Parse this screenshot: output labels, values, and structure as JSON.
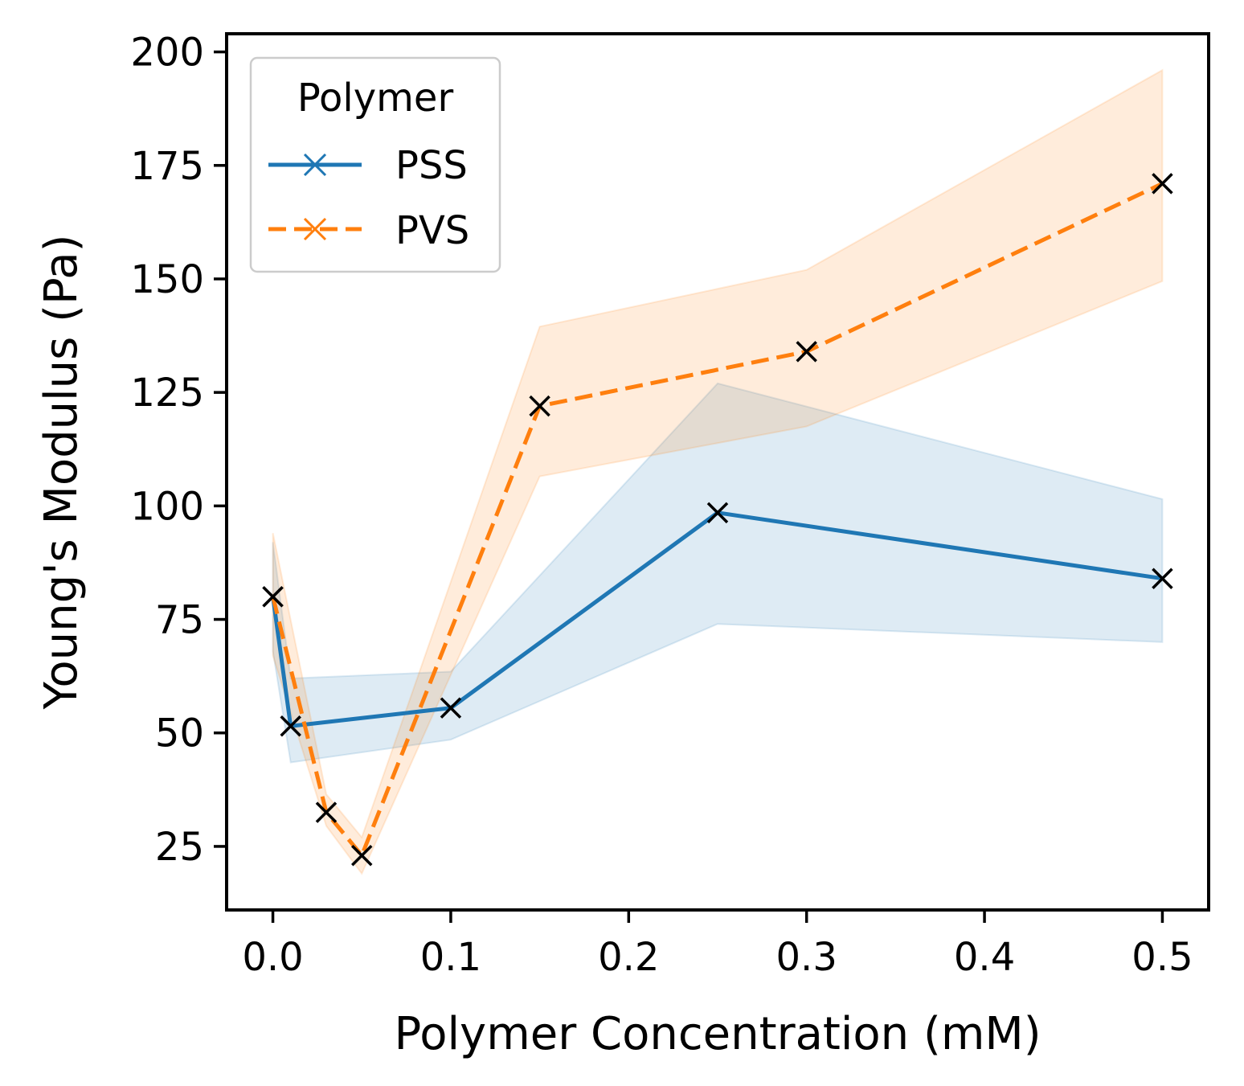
{
  "chart_data": {
    "type": "line",
    "title": "",
    "xlabel": "Polymer Concentration (mM)",
    "ylabel": "Young's Modulus (Pa)",
    "xlim": [
      -0.026,
      0.526
    ],
    "ylim": [
      11,
      204
    ],
    "xticks": [
      0.0,
      0.1,
      0.2,
      0.3,
      0.4,
      0.5
    ],
    "xtick_labels": [
      "0.0",
      "0.1",
      "0.2",
      "0.3",
      "0.4",
      "0.5"
    ],
    "yticks": [
      25,
      50,
      75,
      100,
      125,
      150,
      175,
      200
    ],
    "ytick_labels": [
      "25",
      "50",
      "75",
      "100",
      "125",
      "150",
      "175",
      "200"
    ],
    "grid": false,
    "legend": {
      "title": "Polymer",
      "location": "top-left"
    },
    "marker": "x",
    "marker_color": "#000000",
    "series": [
      {
        "name": "PSS",
        "color": "#1f77b4",
        "linestyle": "solid",
        "x": [
          0.0,
          0.01,
          0.1,
          0.25,
          0.5
        ],
        "y": [
          80,
          51.5,
          55.5,
          98.5,
          84
        ],
        "ci_lower": [
          68,
          43.5,
          48.5,
          74,
          70
        ],
        "ci_upper": [
          92,
          62,
          63.5,
          127,
          101.5
        ]
      },
      {
        "name": "PVS",
        "color": "#ff7f0e",
        "linestyle": "dashed",
        "x": [
          0.0,
          0.03,
          0.05,
          0.15,
          0.3,
          0.5
        ],
        "y": [
          80,
          32.5,
          23,
          122,
          134,
          171
        ],
        "ci_lower": [
          67,
          29.5,
          19,
          106.5,
          117.5,
          149.5
        ],
        "ci_upper": [
          94,
          36.5,
          27,
          139.5,
          152,
          196
        ]
      }
    ]
  }
}
